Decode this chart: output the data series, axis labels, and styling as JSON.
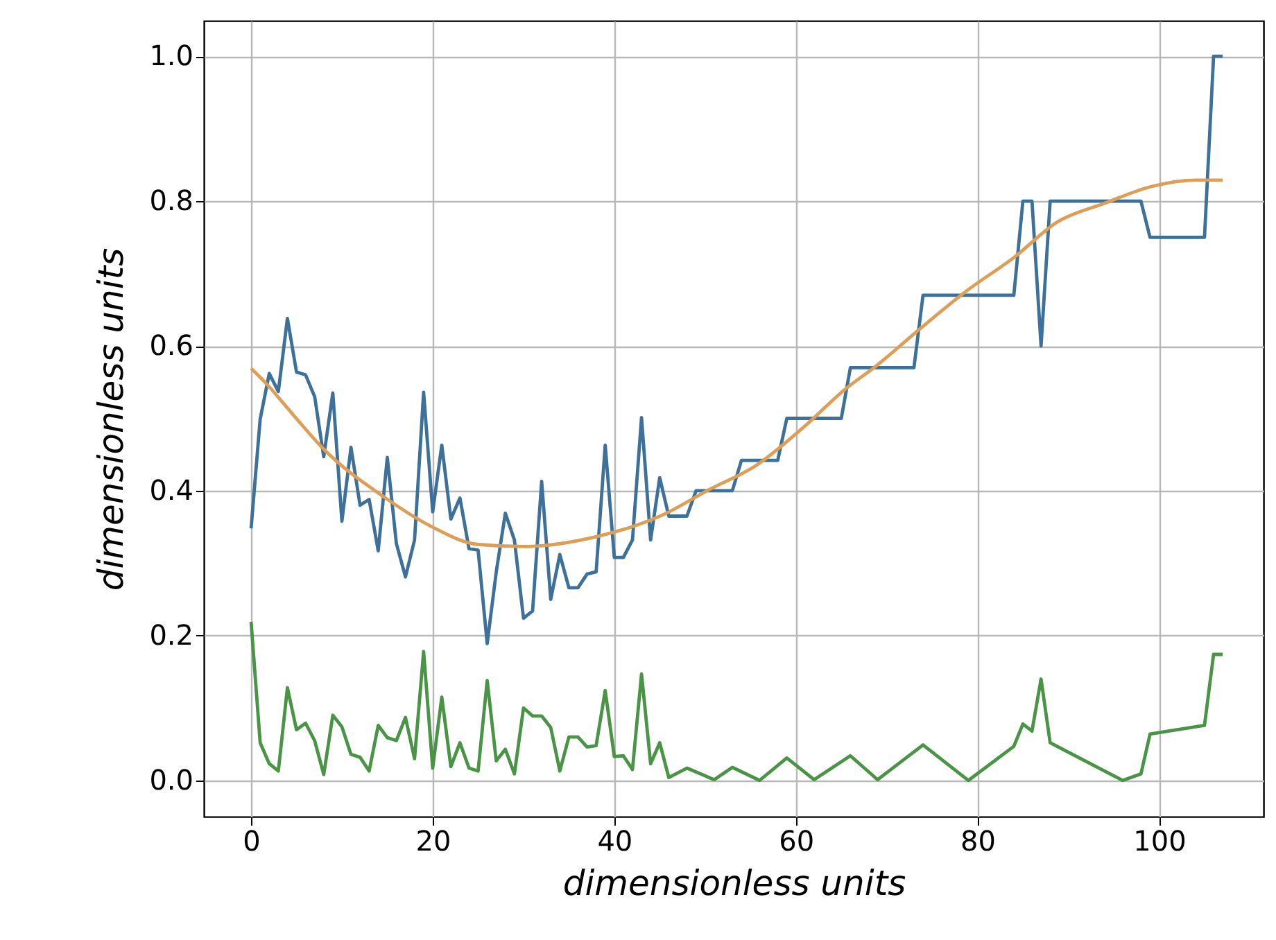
{
  "chart_data": {
    "type": "line",
    "xlabel": "dimensionless units",
    "ylabel": "dimensionless units",
    "xlim": [
      -5.2,
      111.5
    ],
    "ylim": [
      -0.05,
      1.049
    ],
    "xticks": [
      0,
      20,
      40,
      60,
      80,
      100
    ],
    "yticks": [
      {
        "value": 0,
        "label": "0.0"
      },
      0.2,
      0.4,
      0.6,
      0.8,
      {
        "value": 1,
        "label": "1.0"
      }
    ],
    "grid": true,
    "series": [
      {
        "color": "#3e7199",
        "x": [
          0,
          1,
          2,
          3,
          4,
          5,
          6,
          7,
          8,
          9,
          10,
          11,
          12,
          13,
          14,
          15,
          16,
          17,
          18,
          19,
          20,
          21,
          22,
          23,
          24,
          25,
          26,
          27,
          28,
          29,
          30,
          31,
          32,
          33,
          34,
          35,
          36,
          37,
          38,
          39,
          40,
          41,
          42,
          43,
          44,
          45,
          46,
          47,
          48,
          49,
          50,
          51,
          52,
          53,
          54,
          55,
          56,
          57,
          58,
          59,
          60,
          61,
          62,
          63,
          64,
          65,
          66,
          67,
          68,
          69,
          70,
          71,
          72,
          73,
          74,
          75,
          76,
          77,
          78,
          79,
          80,
          81,
          82,
          83,
          84,
          85,
          86,
          87,
          88,
          89,
          90,
          91,
          92,
          93,
          94,
          95,
          96,
          97,
          98,
          99,
          100,
          101,
          102,
          103,
          104,
          105,
          106,
          107
        ],
        "values": [
          0.348,
          0.499,
          0.562,
          0.537,
          0.638,
          0.564,
          0.56,
          0.53,
          0.447,
          0.535,
          0.358,
          0.46,
          0.38,
          0.388,
          0.317,
          0.446,
          0.327,
          0.281,
          0.332,
          0.536,
          0.371,
          0.463,
          0.361,
          0.39,
          0.32,
          0.318,
          0.189,
          0.288,
          0.369,
          0.332,
          0.224,
          0.234,
          0.413,
          0.25,
          0.312,
          0.266,
          0.266,
          0.285,
          0.288,
          0.463,
          0.308,
          0.308,
          0.332,
          0.501,
          0.332,
          0.418,
          0.365,
          0.365,
          0.365,
          0.4,
          0.4,
          0.4,
          0.4,
          0.4,
          0.442,
          0.442,
          0.442,
          0.442,
          0.442,
          0.5,
          0.5,
          0.5,
          0.5,
          0.5,
          0.5,
          0.5,
          0.57,
          0.57,
          0.57,
          0.57,
          0.57,
          0.57,
          0.57,
          0.57,
          0.67,
          0.67,
          0.67,
          0.67,
          0.67,
          0.67,
          0.67,
          0.67,
          0.67,
          0.67,
          0.67,
          0.8,
          0.8,
          0.6,
          0.8,
          0.8,
          0.8,
          0.8,
          0.8,
          0.8,
          0.8,
          0.8,
          0.8,
          0.8,
          0.8,
          0.75,
          0.75,
          0.75,
          0.75,
          0.75,
          0.75,
          0.75,
          1.0,
          1.0
        ]
      },
      {
        "color": "#dd9f57",
        "x": [
          0,
          1.6,
          4.7,
          7.8,
          14.8,
          19.8,
          24.9,
          30,
          37.8,
          45.4,
          50.5,
          55.5,
          60.6,
          65.6,
          68.7,
          73.8,
          78.8,
          83.9,
          88.9,
          94,
          99.1,
          104.1,
          107
        ],
        "values": [
          0.569,
          0.549,
          0.504,
          0.46,
          0.39,
          0.351,
          0.326,
          0.323,
          0.336,
          0.367,
          0.402,
          0.434,
          0.485,
          0.542,
          0.571,
          0.625,
          0.676,
          0.721,
          0.772,
          0.797,
          0.82,
          0.829,
          0.829
        ]
      },
      {
        "color": "#4a9446",
        "x": [
          0,
          1,
          2,
          3,
          4,
          5,
          6,
          7,
          8,
          9,
          10,
          11,
          12,
          13,
          14,
          15,
          16,
          17,
          18,
          19,
          20,
          21,
          22,
          23,
          24,
          25,
          26,
          27,
          28,
          29,
          30,
          31,
          32,
          33,
          34,
          35,
          36,
          37,
          38,
          39,
          40,
          41,
          42,
          43,
          44,
          45,
          46,
          48,
          51,
          53,
          56,
          59,
          62,
          66,
          69,
          74,
          79,
          84,
          85,
          86,
          87,
          88,
          96,
          98,
          99,
          105,
          106,
          107
        ],
        "values": [
          0.219,
          0.052,
          0.023,
          0.013,
          0.128,
          0.07,
          0.079,
          0.055,
          0.008,
          0.09,
          0.074,
          0.036,
          0.032,
          0.013,
          0.076,
          0.059,
          0.055,
          0.087,
          0.03,
          0.178,
          0.017,
          0.115,
          0.019,
          0.052,
          0.017,
          0.013,
          0.138,
          0.027,
          0.043,
          0.009,
          0.1,
          0.089,
          0.089,
          0.073,
          0.013,
          0.06,
          0.06,
          0.046,
          0.048,
          0.124,
          0.033,
          0.034,
          0.015,
          0.147,
          0.023,
          0.052,
          0.004,
          0.017,
          0.001,
          0.018,
          0.0,
          0.031,
          0.001,
          0.034,
          0.001,
          0.049,
          0.0,
          0.047,
          0.078,
          0.068,
          0.14,
          0.052,
          0.0,
          0.009,
          0.064,
          0.076,
          0.174,
          0.174
        ]
      }
    ]
  }
}
